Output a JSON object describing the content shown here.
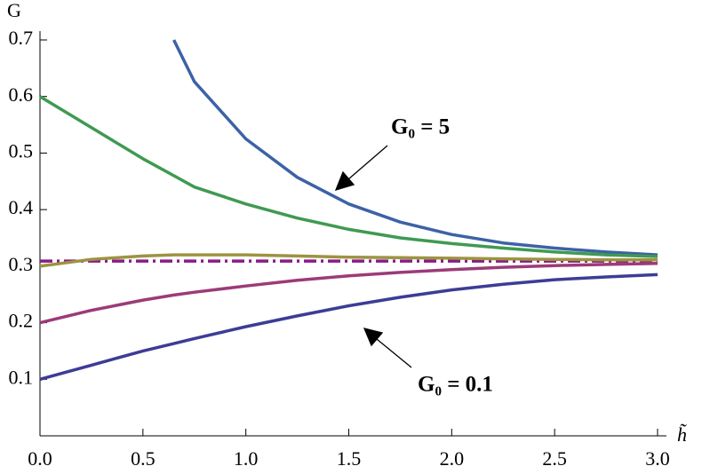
{
  "chart_data": {
    "type": "line",
    "x_label": "h̃",
    "y_label": "G",
    "x": [
      0,
      0.25,
      0.5,
      0.65,
      0.75,
      1.0,
      1.25,
      1.5,
      1.75,
      2.0,
      2.25,
      2.5,
      2.75,
      3.0
    ],
    "series": [
      {
        "color": "#3c62a6",
        "values": [
          null,
          null,
          null,
          0.7,
          0.626,
          0.525,
          0.457,
          0.41,
          0.378,
          0.356,
          0.341,
          0.332,
          0.325,
          0.32
        ]
      },
      {
        "color": "#3f9a52",
        "values": [
          0.6,
          0.545,
          0.49,
          0.46,
          0.44,
          0.41,
          0.385,
          0.365,
          0.35,
          0.34,
          0.332,
          0.325,
          0.32,
          0.317
        ]
      },
      {
        "color": "#9c9440",
        "values": [
          0.3,
          0.312,
          0.318,
          0.32,
          0.32,
          0.32,
          0.318,
          0.316,
          0.315,
          0.314,
          0.313,
          0.312,
          0.311,
          0.311
        ]
      },
      {
        "color": "#9c3b78",
        "values": [
          0.2,
          0.222,
          0.24,
          0.249,
          0.254,
          0.265,
          0.275,
          0.283,
          0.289,
          0.294,
          0.298,
          0.301,
          0.303,
          0.305
        ]
      },
      {
        "color": "#3d3c96",
        "values": [
          0.1,
          0.125,
          0.15,
          0.163,
          0.172,
          0.193,
          0.212,
          0.23,
          0.245,
          0.258,
          0.268,
          0.276,
          0.281,
          0.285
        ]
      }
    ],
    "reference_line": {
      "value": 0.309,
      "color": "#8a1a8a",
      "dashed": true
    },
    "annotations": [
      {
        "text": "G₀ = 5"
      },
      {
        "text": "G₀ = 0.1"
      }
    ],
    "xlim": [
      0,
      3
    ],
    "ylim": [
      0,
      0.7
    ],
    "xticks": [
      {
        "value": 0,
        "label": "0.0"
      },
      0.5,
      {
        "value": 1,
        "label": "1.0"
      },
      1.5,
      {
        "value": 2,
        "label": "2.0"
      },
      2.5,
      {
        "value": 3,
        "label": "3.0"
      }
    ],
    "yticks": [
      0.1,
      0.2,
      0.3,
      0.4,
      0.5,
      0.6,
      0.7
    ],
    "grid": false
  }
}
